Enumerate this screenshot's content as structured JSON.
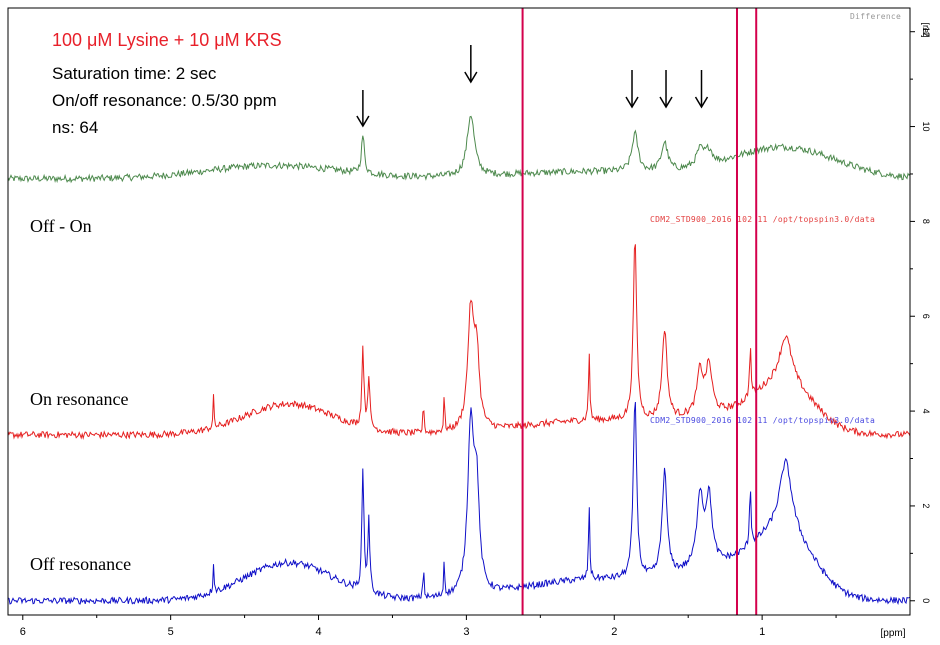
{
  "conditions": {
    "title": "100 μM Lysine +  10 μM KRS",
    "saturation_time": "Saturation time: 2 sec",
    "on_off_resonance": "On/off resonance: 0.5/30 ppm",
    "scans": "ns: 64"
  },
  "panel_labels": {
    "difference": "Off - On",
    "on": "On resonance",
    "off": "Off resonance"
  },
  "spectrum_notes": {
    "difference": "Difference",
    "on": "CDM2_STD900_2016  102  11  /opt/topspin3.0/data",
    "off": "CDM2_STD900_2016  102  11  /opt/topspin3.0/data"
  },
  "colors": {
    "difference": "#4e8a4e",
    "on": "#e52020",
    "off": "#1010c8",
    "title": "#e8202a",
    "marker_lines": "#d4004c"
  },
  "chart_data": {
    "type": "line",
    "xlabel": "[ppm]",
    "ylabel": "[rel]",
    "xlim": [
      6.1,
      0.0
    ],
    "ylim": [
      -0.3,
      12.5
    ],
    "x_ticks": [
      6,
      5,
      4,
      3,
      2,
      1
    ],
    "y_ticks": [
      0,
      2,
      4,
      6,
      8,
      10,
      12
    ],
    "grid": false,
    "vertical_markers_ppm": [
      2.62,
      1.17,
      1.04
    ],
    "arrows_ppm": [
      3.7,
      2.97,
      1.88,
      1.65,
      1.41
    ],
    "series": [
      {
        "name": "Off - On",
        "baseline": 8.9,
        "noise": 0.07,
        "broad": [
          [
            4.3,
            0.28,
            0.45
          ],
          [
            0.85,
            0.65,
            0.35
          ],
          [
            2.1,
            0.15,
            0.6
          ]
        ],
        "peaks": [
          [
            3.7,
            0.8,
            0.012
          ],
          [
            2.97,
            1.3,
            0.03
          ],
          [
            1.86,
            0.8,
            0.025
          ],
          [
            1.66,
            0.6,
            0.025
          ],
          [
            1.42,
            0.35,
            0.03
          ],
          [
            1.36,
            0.3,
            0.03
          ]
        ]
      },
      {
        "name": "On resonance",
        "baseline": 3.5,
        "noise": 0.07,
        "broad": [
          [
            4.2,
            0.65,
            0.3
          ],
          [
            0.85,
            1.0,
            0.2
          ],
          [
            2.1,
            0.3,
            0.5
          ],
          [
            1.3,
            0.3,
            0.25
          ]
        ],
        "peaks": [
          [
            4.71,
            0.65,
            0.004
          ],
          [
            3.7,
            1.7,
            0.008
          ],
          [
            3.66,
            1.1,
            0.008
          ],
          [
            3.29,
            0.75,
            0.004
          ],
          [
            3.15,
            0.8,
            0.004
          ],
          [
            2.97,
            2.5,
            0.025
          ],
          [
            2.93,
            1.5,
            0.02
          ],
          [
            2.17,
            1.5,
            0.005
          ],
          [
            1.86,
            3.8,
            0.014
          ],
          [
            1.66,
            1.9,
            0.02
          ],
          [
            1.42,
            0.9,
            0.025
          ],
          [
            1.36,
            1.0,
            0.025
          ],
          [
            1.08,
            1.1,
            0.006
          ],
          [
            0.84,
            1.0,
            0.05
          ]
        ]
      },
      {
        "name": "Off resonance",
        "baseline": 0.0,
        "noise": 0.07,
        "broad": [
          [
            4.2,
            0.8,
            0.3
          ],
          [
            0.85,
            1.3,
            0.2
          ],
          [
            2.1,
            0.45,
            0.5
          ],
          [
            1.3,
            0.55,
            0.25
          ]
        ],
        "peaks": [
          [
            4.71,
            0.65,
            0.004
          ],
          [
            3.7,
            2.6,
            0.008
          ],
          [
            3.66,
            1.5,
            0.008
          ],
          [
            3.29,
            0.75,
            0.004
          ],
          [
            3.15,
            0.8,
            0.004
          ],
          [
            2.97,
            3.6,
            0.025
          ],
          [
            2.93,
            2.0,
            0.02
          ],
          [
            2.17,
            1.6,
            0.005
          ],
          [
            1.86,
            3.8,
            0.014
          ],
          [
            1.66,
            2.2,
            0.02
          ],
          [
            1.42,
            1.5,
            0.025
          ],
          [
            1.36,
            1.4,
            0.025
          ],
          [
            1.08,
            1.3,
            0.006
          ],
          [
            0.84,
            1.5,
            0.05
          ]
        ]
      }
    ]
  }
}
